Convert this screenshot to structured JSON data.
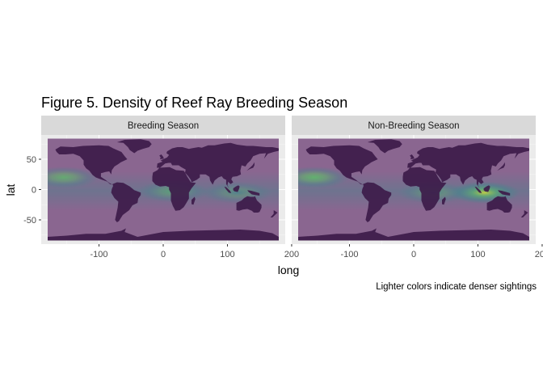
{
  "chart_data": {
    "type": "heatmap",
    "title": "Figure 5. Density of Reef Ray Breeding Season",
    "caption": "Lighter colors indicate denser sightings",
    "xlabel": "long",
    "ylabel": "lat",
    "xlim": [
      -190,
      190
    ],
    "ylim": [
      -90,
      90
    ],
    "x_ticks": [
      -100,
      0,
      100,
      200
    ],
    "y_ticks": [
      50,
      0,
      -50
    ],
    "x_tick_labels": [
      "-100",
      "0",
      "100",
      "200"
    ],
    "y_tick_labels": [
      "50",
      "0",
      "-50"
    ],
    "grid": true,
    "facets": [
      {
        "label": "Breeding Season",
        "density_peaks": [
          {
            "long": -155,
            "lat": 20,
            "level": 0.62
          },
          {
            "long": 15,
            "lat": -3,
            "level": 0.55
          },
          {
            "long": 115,
            "lat": -5,
            "level": 0.45
          }
        ]
      },
      {
        "label": "Non-Breeding Season",
        "density_peaks": [
          {
            "long": -155,
            "lat": 20,
            "level": 0.7
          },
          {
            "long": 110,
            "lat": -5,
            "level": 0.95
          },
          {
            "long": 30,
            "lat": -5,
            "level": 0.5
          }
        ]
      }
    ],
    "colors": {
      "panel_bg": "#ebebeb",
      "strip_bg": "#d9d9d9",
      "land": "#3d1b4a",
      "ocean": "#8a6690",
      "density_low": "#3b8c8c",
      "density_mid": "#5ec962",
      "density_high": "#fde725"
    }
  }
}
